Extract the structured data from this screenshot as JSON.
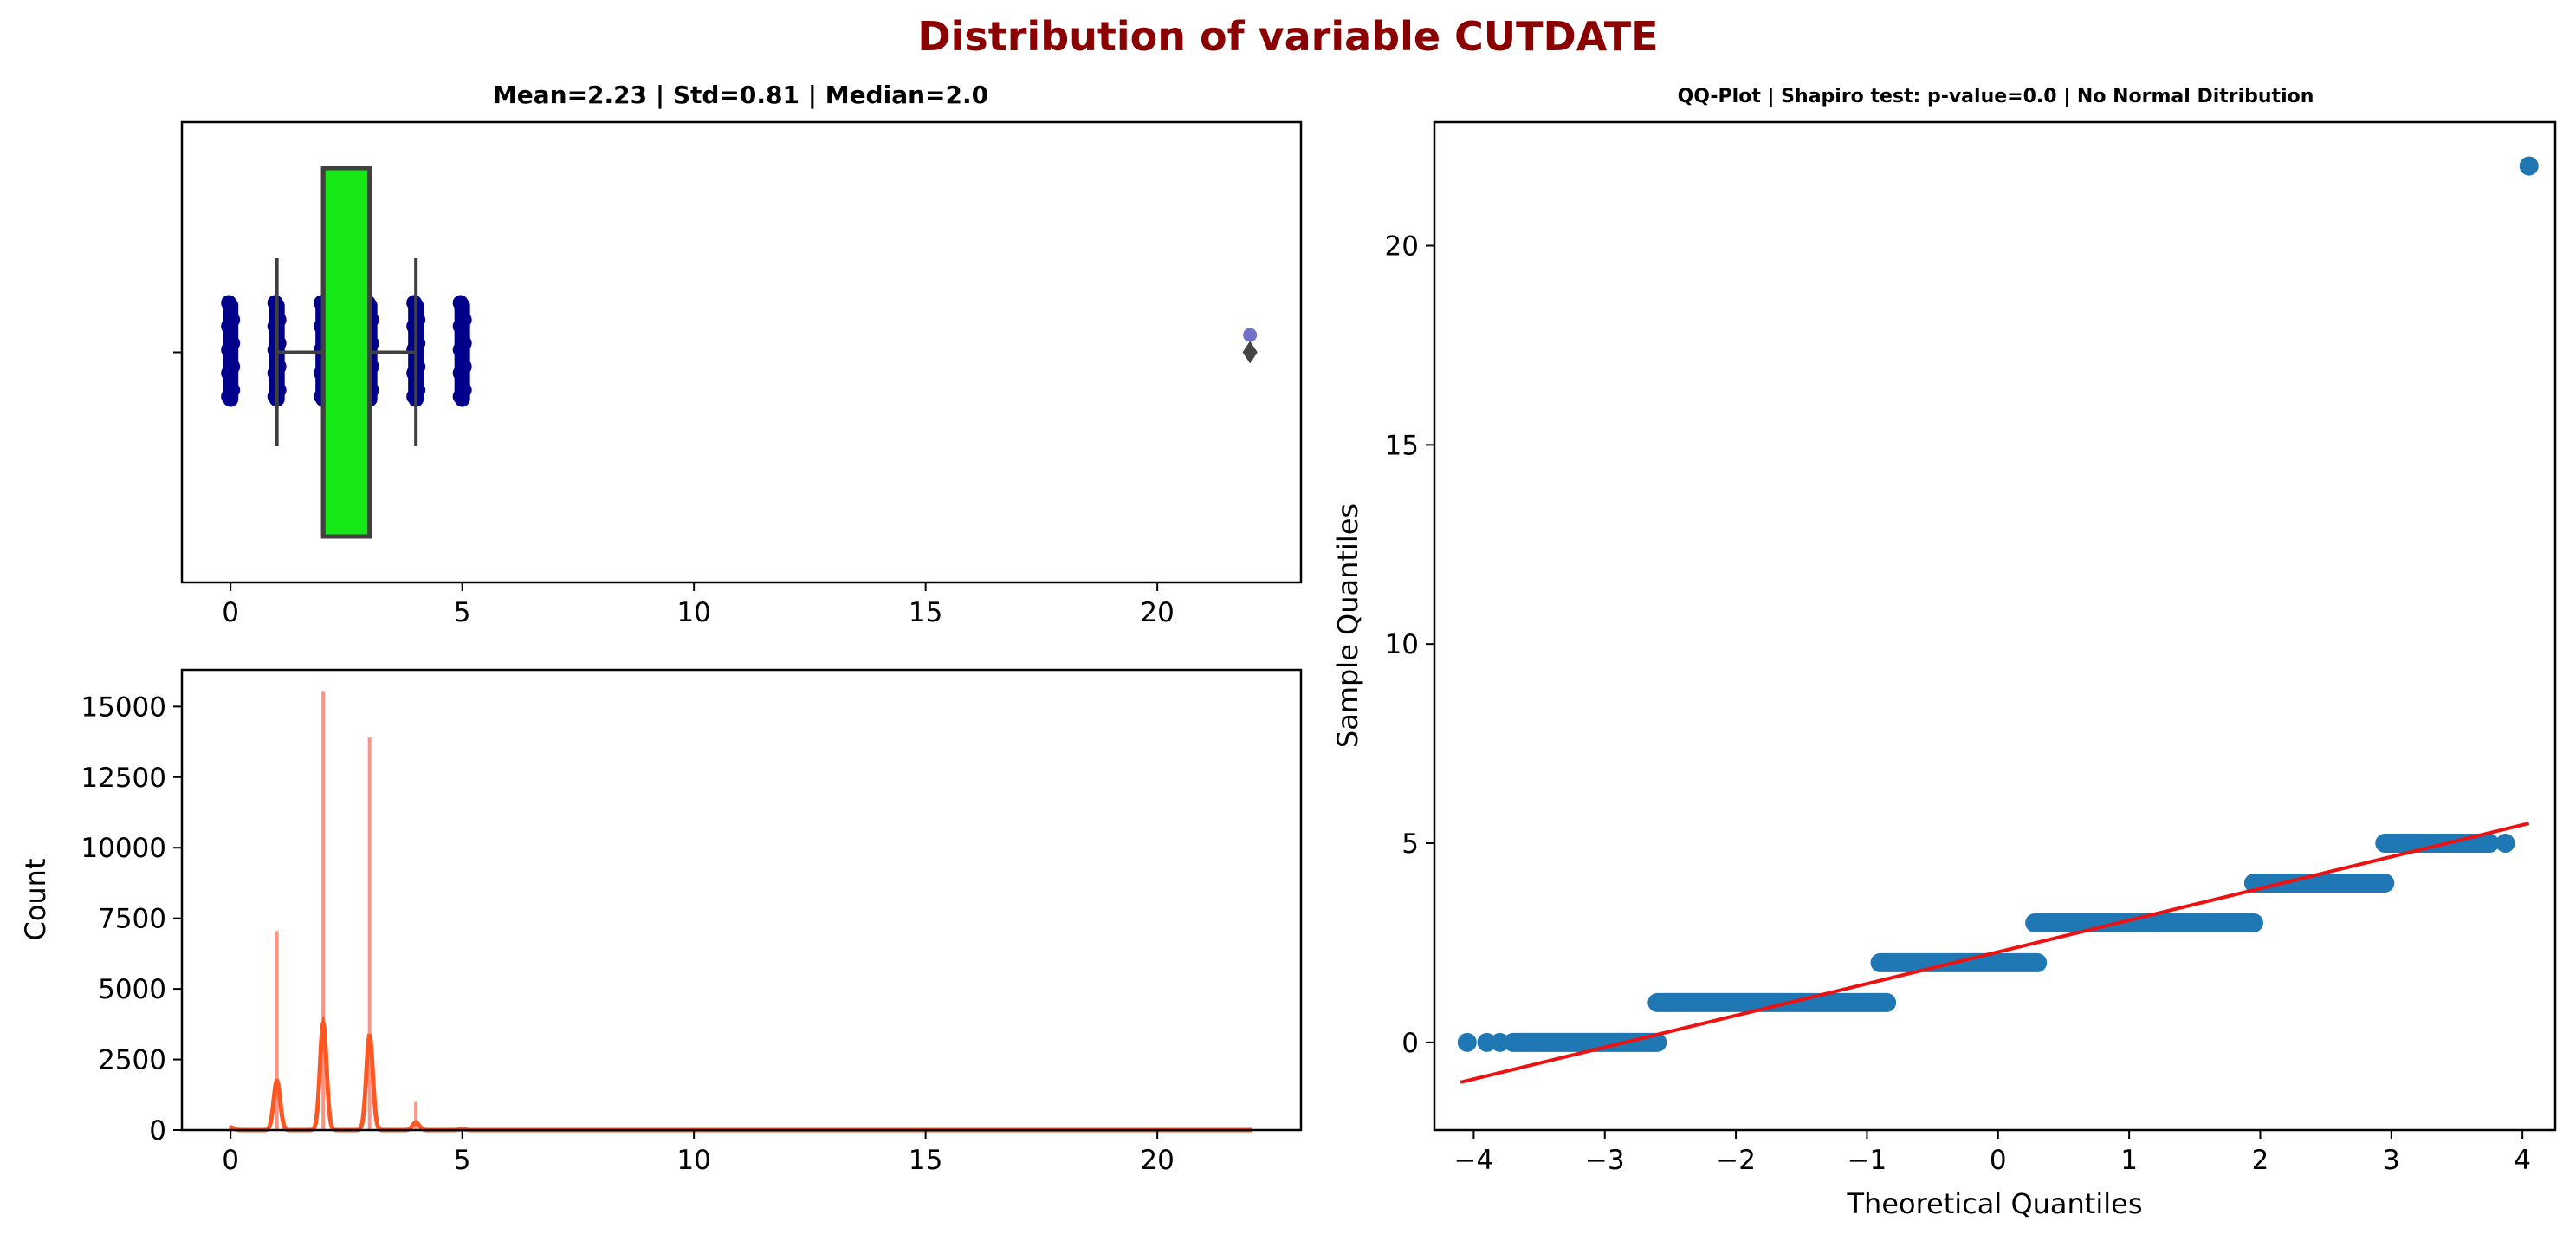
{
  "figure": {
    "suptitle": "Distribution of variable CUTDATE",
    "suptitle_color": "#8b0000"
  },
  "chart_data": [
    {
      "id": "boxplot",
      "type": "box",
      "title": "Mean=2.23 | Std=0.81 | Median=2.0",
      "xlim": [
        -1.05,
        23.1
      ],
      "xticks": [
        0,
        5,
        10,
        15,
        20
      ],
      "yticks": [
        ""
      ],
      "box": {
        "q1": 2,
        "median": 2,
        "q3": 3,
        "whisker_low": 1,
        "whisker_high": 4,
        "fill": "#16e816",
        "edge": "#404040"
      },
      "flier_values": [
        22
      ],
      "strip_values": [
        0,
        1,
        2,
        3,
        4,
        5,
        22
      ],
      "strip_color": "#00008b"
    },
    {
      "id": "histogram",
      "type": "histogram",
      "title": "",
      "xlabel": "",
      "ylabel": "Count",
      "xlim": [
        -1.05,
        23.1
      ],
      "ylim": [
        0,
        16300
      ],
      "xticks": [
        0,
        5,
        10,
        15,
        20
      ],
      "yticks": [
        0,
        2500,
        5000,
        7500,
        10000,
        12500,
        15000
      ],
      "bar_color": "#fa8072",
      "kde_color": "#ff5722",
      "bars": [
        {
          "x": 0,
          "count": 150
        },
        {
          "x": 1,
          "count": 7050
        },
        {
          "x": 2,
          "count": 15550
        },
        {
          "x": 3,
          "count": 13900
        },
        {
          "x": 4,
          "count": 1000
        },
        {
          "x": 5,
          "count": 80
        },
        {
          "x": 22,
          "count": 1
        }
      ],
      "kde_peaks": [
        {
          "x": 0,
          "y": 100
        },
        {
          "x": 1,
          "y": 1750
        },
        {
          "x": 2,
          "y": 3800
        },
        {
          "x": 3,
          "y": 3350
        },
        {
          "x": 4,
          "y": 270
        },
        {
          "x": 5,
          "y": 30
        }
      ]
    },
    {
      "id": "qqplot",
      "type": "scatter",
      "title": "QQ-Plot | Shapiro test: p-value=0.0 | No Normal Ditribution",
      "xlabel": "Theoretical Quantiles",
      "ylabel": "Sample Quantiles",
      "xlim": [
        -4.3,
        4.25
      ],
      "ylim": [
        -2.2,
        23.1
      ],
      "xticks": [
        -4,
        -3,
        -2,
        -1,
        0,
        1,
        2,
        3,
        4
      ],
      "yticks": [
        0,
        5,
        10,
        15,
        20
      ],
      "marker_color": "#1f77b4",
      "line_color": "#ee1111",
      "fit_line": [
        {
          "x": -4.1,
          "y": -1.0
        },
        {
          "x": 4.05,
          "y": 5.5
        }
      ],
      "segments": [
        {
          "y": 0,
          "x_from": -3.7,
          "x_to": -2.6
        },
        {
          "y": 1,
          "x_from": -2.6,
          "x_to": -0.85
        },
        {
          "y": 2,
          "x_from": -0.9,
          "x_to": 0.3
        },
        {
          "y": 3,
          "x_from": 0.28,
          "x_to": 1.95
        },
        {
          "y": 4,
          "x_from": 1.95,
          "x_to": 2.95
        },
        {
          "y": 5,
          "x_from": 2.95,
          "x_to": 3.75
        }
      ],
      "points": [
        {
          "x": -4.05,
          "y": 0
        },
        {
          "x": -3.9,
          "y": 0
        },
        {
          "x": -3.8,
          "y": 0
        },
        {
          "x": 3.87,
          "y": 5
        },
        {
          "x": 4.05,
          "y": 22
        }
      ]
    }
  ]
}
